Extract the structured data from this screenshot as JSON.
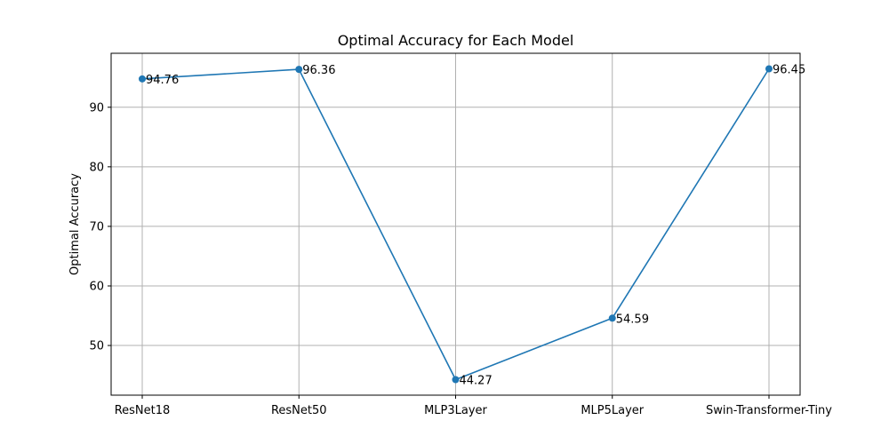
{
  "chart_data": {
    "type": "line",
    "title": "Optimal Accuracy for Each Model",
    "xlabel": "",
    "ylabel": "Optimal Accuracy",
    "categories": [
      "ResNet18",
      "ResNet50",
      "MLP3Layer",
      "MLP5Layer",
      "Swin-Transformer-Tiny"
    ],
    "series": [
      {
        "values": [
          94.76,
          96.36,
          44.27,
          54.59,
          96.45
        ],
        "data_labels": [
          "94.76",
          "96.36",
          "44.27",
          "54.59",
          "96.45"
        ],
        "color": "#1f77b4",
        "marker": "circle"
      }
    ],
    "ylim": [
      41.66,
      99.06
    ],
    "yticks": [
      50,
      60,
      70,
      80,
      90
    ],
    "ytick_labels": [
      "50",
      "60",
      "70",
      "80",
      "90"
    ],
    "grid": true,
    "legend": "none"
  }
}
